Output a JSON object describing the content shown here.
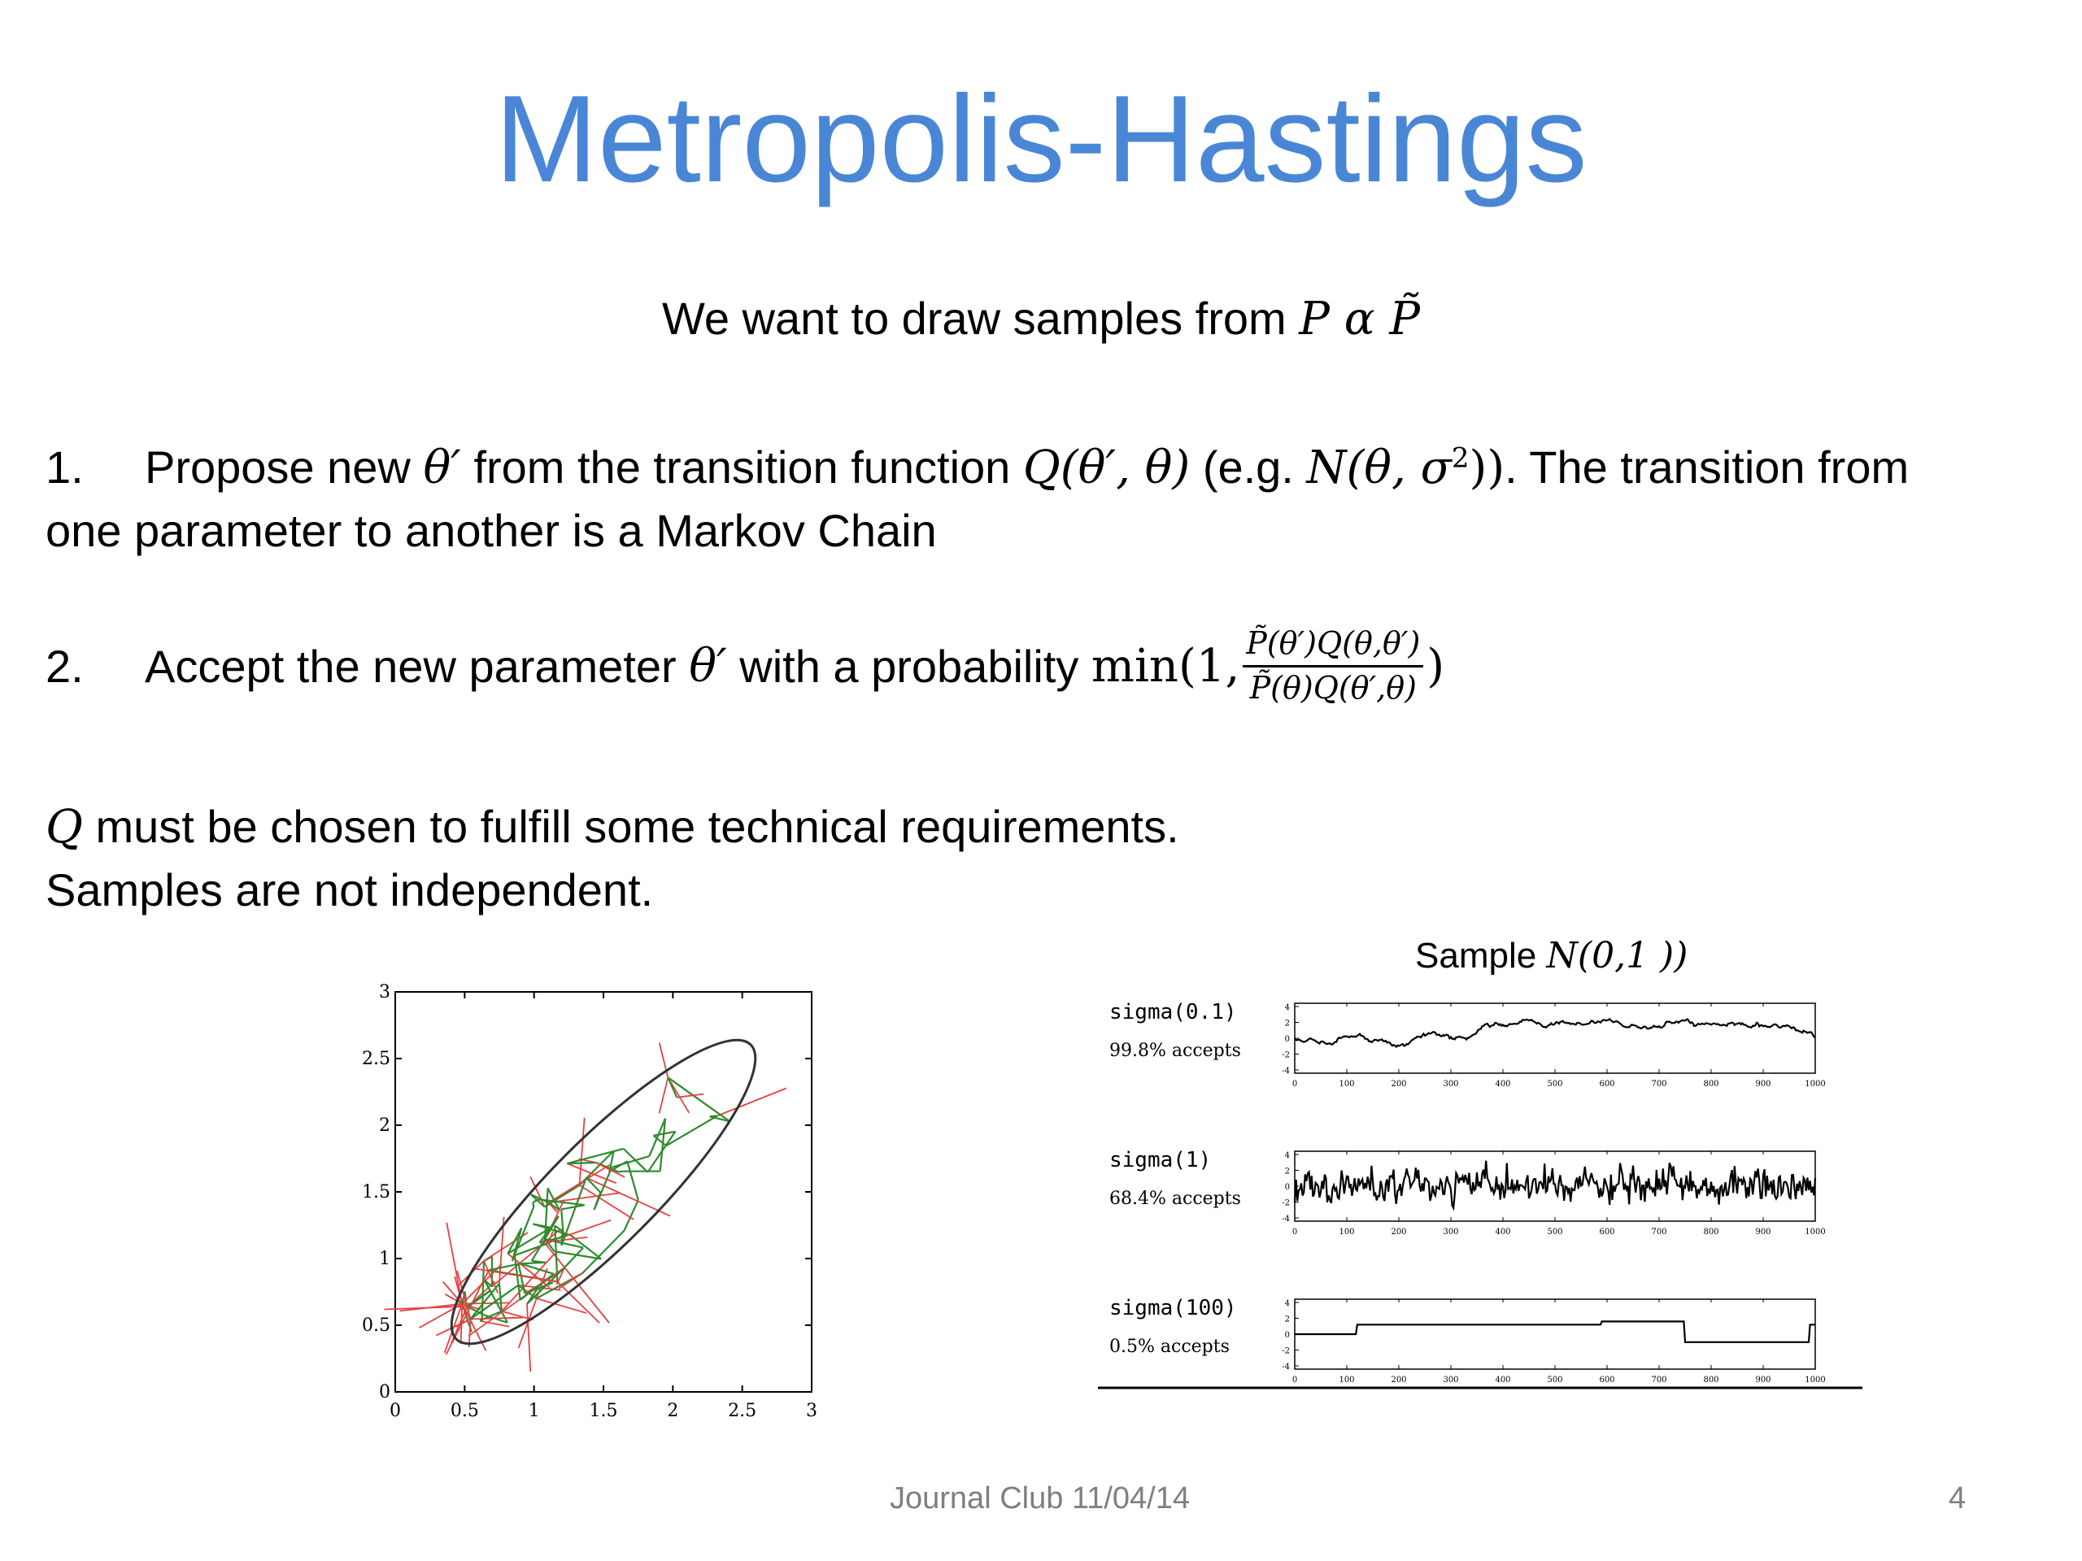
{
  "slide": {
    "title": "Metropolis-Hastings",
    "subtitle_text": "We want to draw samples from",
    "subtitle_math": "P α P̃",
    "step1": {
      "number": "1.",
      "t1": "Propose new",
      "m1": "θ′",
      "t2": "from the transition function",
      "m2": "Q(θ′, θ)",
      "t3": "(e.g.",
      "m3": "N(θ, σ",
      "sup": "2",
      "m4": "))",
      "t4": ". The transition from",
      "line2": "one parameter to another is a Markov Chain"
    },
    "step2": {
      "number": "2.",
      "t1": "Accept the new parameter",
      "m1": "θ′",
      "t2": "with a probability",
      "m_min": "min(1,",
      "frac_num": "P̃(θ′)Q(θ,θ′)",
      "frac_den": "P̃(θ)Q(θ′,θ)",
      "m_close": ")"
    },
    "note1_math": "Q",
    "note1_text": "must be chosen to fulfill some technical requirements.",
    "note2": "Samples are not independent.",
    "footer_center": "Journal Club 11/04/14",
    "page_number": "4"
  },
  "scatter_plot": {
    "xticks": [
      "0",
      "0.5",
      "1",
      "1.5",
      "2",
      "2.5",
      "3"
    ],
    "yticks": [
      "0",
      "0.5",
      "1",
      "1.5",
      "2",
      "2.5",
      "3"
    ],
    "xlim": [
      0,
      3
    ],
    "ylim": [
      0,
      3
    ],
    "ellipse": {
      "center": [
        1.5,
        1.5
      ],
      "angle_deg": 45,
      "semi_major": 1.5,
      "semi_minor": 0.38
    },
    "colors": {
      "accepted": "#2e8b2e",
      "rejected": "#e84040",
      "ellipse": "#333333"
    }
  },
  "trace_panel": {
    "caption_text": "Sample",
    "caption_math": "N(0,1 ))",
    "xticks": [
      "0",
      "100",
      "200",
      "300",
      "400",
      "500",
      "600",
      "700",
      "800",
      "900",
      "1000"
    ],
    "yticks": [
      "4",
      "2",
      "0",
      "-2",
      "-4"
    ],
    "traces": [
      {
        "label": "sigma(0.1)",
        "accepts": "99.8% accepts"
      },
      {
        "label": "sigma(1)",
        "accepts": "68.4% accepts"
      },
      {
        "label": "sigma(100)",
        "accepts": "0.5% accepts"
      }
    ]
  }
}
